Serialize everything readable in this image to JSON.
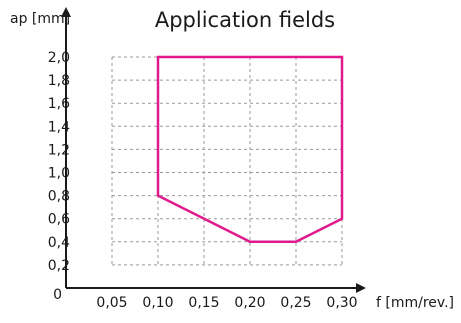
{
  "chart_data": {
    "type": "area",
    "title": "Application fields",
    "xlabel": "f [mm/rev.]",
    "ylabel": "ap [mm]",
    "x_ticks": [
      "0,05",
      "0,10",
      "0,15",
      "0,20",
      "0,25",
      "0,30"
    ],
    "x_tick_values": [
      0.05,
      0.1,
      0.15,
      0.2,
      0.25,
      0.3
    ],
    "y_ticks": [
      "0",
      "0,2",
      "0,4",
      "0,6",
      "0,8",
      "1,0",
      "1,2",
      "1,4",
      "1,6",
      "1,8",
      "2,0"
    ],
    "y_tick_values": [
      0,
      0.2,
      0.4,
      0.6,
      0.8,
      1.0,
      1.2,
      1.4,
      1.6,
      1.8,
      2.0
    ],
    "xlim": [
      0,
      0.3
    ],
    "ylim": [
      0,
      2.0
    ],
    "grid": true,
    "grid_x_range": [
      0.05,
      0.3
    ],
    "grid_y_range": [
      0.2,
      2.0
    ],
    "series": [
      {
        "closed": true,
        "points": [
          [
            0.1,
            2.0
          ],
          [
            0.3,
            2.0
          ],
          [
            0.3,
            0.6
          ],
          [
            0.25,
            0.4
          ],
          [
            0.2,
            0.4
          ],
          [
            0.1,
            0.8
          ]
        ]
      }
    ]
  },
  "colors": {
    "area_outline": "#e0198c",
    "axis": "#1a1a1a",
    "grid": "#9a9a9a"
  }
}
